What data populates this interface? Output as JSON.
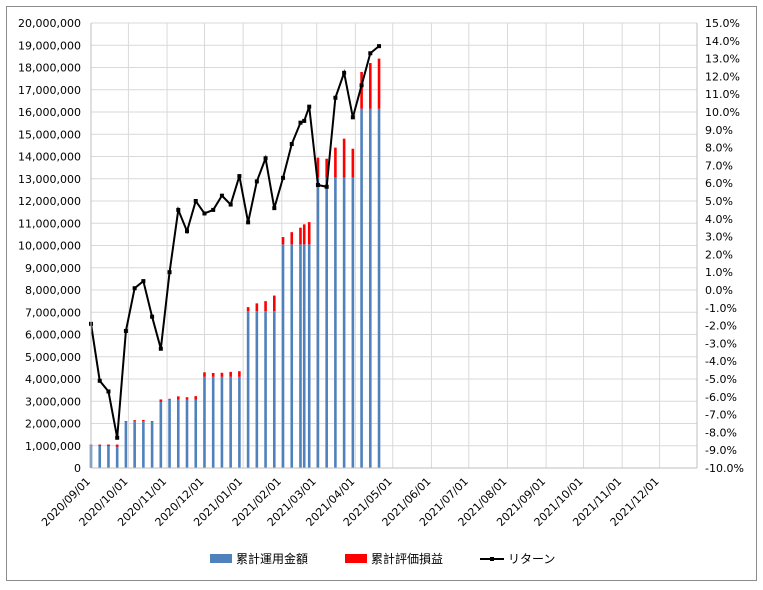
{
  "chart_data": {
    "type": "bar",
    "x": [
      "2020/09/01",
      "2020/09/08",
      "2020/09/15",
      "2020/09/22",
      "2020/09/29",
      "2020/10/06",
      "2020/10/13",
      "2020/10/20",
      "2020/10/27",
      "2020/11/03",
      "2020/11/10",
      "2020/11/17",
      "2020/11/24",
      "2020/12/01",
      "2020/12/08",
      "2020/12/15",
      "2020/12/22",
      "2020/12/29",
      "2021/01/05",
      "2021/01/12",
      "2021/01/19",
      "2021/01/26",
      "2021/02/02",
      "2021/02/09",
      "2021/02/16",
      "2021/02/19",
      "2021/02/23",
      "2021/03/02",
      "2021/03/09",
      "2021/03/16",
      "2021/03/23",
      "2021/03/30",
      "2021/04/06",
      "2021/04/13",
      "2021/04/20"
    ],
    "series": [
      {
        "name": "累計運用金額",
        "axis": "left",
        "color": "#4f81bd",
        "values": [
          1050000,
          1050000,
          1050000,
          1050000,
          2100000,
          2100000,
          2100000,
          2100000,
          3080000,
          3080000,
          3080000,
          3080000,
          3080000,
          4100000,
          4100000,
          4100000,
          4100000,
          4100000,
          7050000,
          7050000,
          7050000,
          7050000,
          10050000,
          10050000,
          10050000,
          10050000,
          10050000,
          13050000,
          13050000,
          13050000,
          13050000,
          13050000,
          16150000,
          16150000,
          16150000
        ]
      },
      {
        "name": "累計評価損益",
        "axis": "left",
        "color": "#ff0000",
        "values": [
          -30000,
          -50000,
          -60000,
          -90000,
          -30000,
          50000,
          60000,
          -20000,
          -100000,
          30000,
          140000,
          100000,
          150000,
          200000,
          170000,
          180000,
          220000,
          250000,
          180000,
          350000,
          450000,
          700000,
          330000,
          550000,
          750000,
          900000,
          1000000,
          900000,
          850000,
          1350000,
          1750000,
          1300000,
          1650000,
          2050000,
          2250000
        ]
      },
      {
        "name": "リターン",
        "axis": "right",
        "color": "#000000",
        "values": [
          -1.9,
          -5.1,
          -5.7,
          -8.3,
          -2.3,
          0.1,
          0.5,
          -1.5,
          -3.3,
          1.0,
          4.5,
          3.3,
          5.0,
          4.3,
          4.5,
          5.3,
          4.8,
          6.4,
          3.8,
          6.1,
          7.4,
          4.6,
          6.3,
          8.2,
          9.4,
          9.5,
          10.3,
          5.9,
          5.8,
          10.8,
          12.2,
          9.7,
          11.5,
          13.3,
          13.7
        ]
      }
    ],
    "series_types": [
      "stacked-bar",
      "stacked-bar",
      "line"
    ],
    "x_tick_labels": [
      "2020/09/01",
      "2020/10/01",
      "2020/11/01",
      "2020/12/01",
      "2021/01/01",
      "2021/02/01",
      "2021/03/01",
      "2021/04/01",
      "2021/05/01",
      "2021/06/01",
      "2021/07/01",
      "2021/08/01",
      "2021/09/01",
      "2021/10/01",
      "2021/11/01",
      "2021/12/01"
    ],
    "x_range": [
      "2020/09/01",
      "2021/12/31"
    ],
    "y_left_range": [
      0,
      20000000
    ],
    "y_left_step": 1000000,
    "y_left_tick_labels": [
      "0",
      "1,000,000",
      "2,000,000",
      "3,000,000",
      "4,000,000",
      "5,000,000",
      "6,000,000",
      "7,000,000",
      "8,000,000",
      "9,000,000",
      "10,000,000",
      "11,000,000",
      "12,000,000",
      "13,000,000",
      "14,000,000",
      "15,000,000",
      "16,000,000",
      "17,000,000",
      "18,000,000",
      "19,000,000",
      "20,000,000"
    ],
    "y_right_range": [
      -10.0,
      15.0
    ],
    "y_right_step": 1.0,
    "y_right_tick_labels": [
      "-10.0%",
      "-9.0%",
      "-8.0%",
      "-7.0%",
      "-6.0%",
      "-5.0%",
      "-4.0%",
      "-3.0%",
      "-2.0%",
      "-1.0%",
      "0.0%",
      "1.0%",
      "2.0%",
      "3.0%",
      "4.0%",
      "5.0%",
      "6.0%",
      "7.0%",
      "8.0%",
      "9.0%",
      "10.0%",
      "11.0%",
      "12.0%",
      "13.0%",
      "14.0%",
      "15.0%"
    ],
    "grid": true,
    "legend_position": "bottom",
    "title": "",
    "xlabel": "",
    "ylabel": ""
  }
}
